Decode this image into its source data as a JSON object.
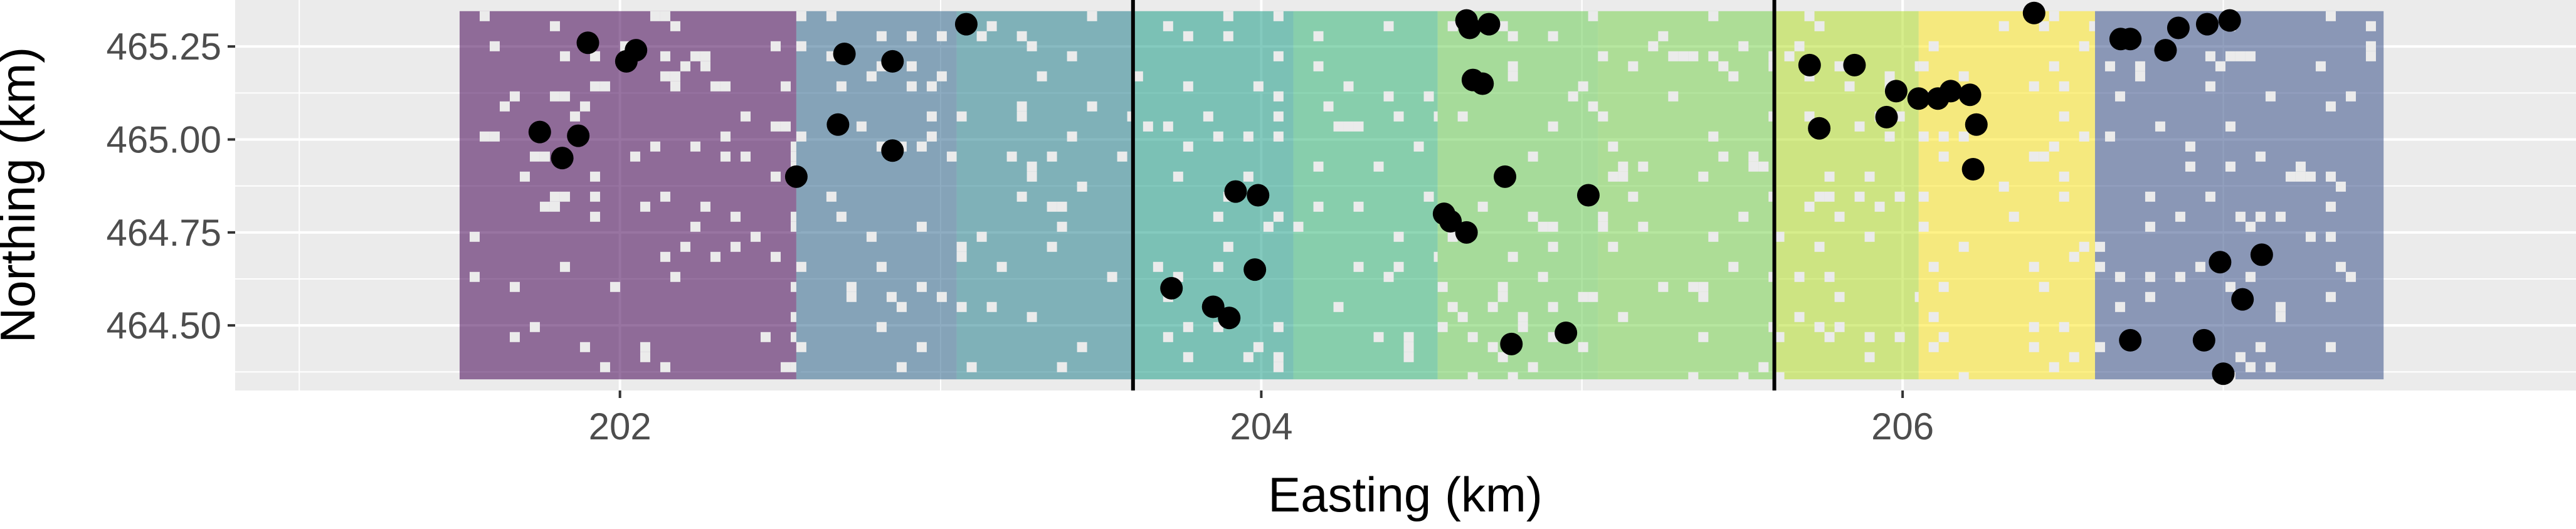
{
  "chart_data": {
    "type": "scatter",
    "title": "",
    "xlabel": "Easting (km)",
    "ylabel": "Northing (km)",
    "xlim": [
      200.8,
      208.1
    ],
    "ylim": [
      464.325,
      465.375
    ],
    "x_ticks": [
      202,
      204,
      206
    ],
    "x_tick_labels": [
      "202",
      "204",
      "206"
    ],
    "y_ticks": [
      464.5,
      464.75,
      465.0,
      465.25
    ],
    "y_tick_labels": [
      "464.50",
      "464.75",
      "465.00",
      "465.25"
    ],
    "grid": true,
    "legend": "none",
    "background": "#ebebeb",
    "vertical_lines_x": [
      203.6,
      205.6
    ],
    "vertical_line_color": "#000000",
    "point_color": "#000000",
    "raster": {
      "x_range": [
        201.5,
        207.5
      ],
      "y_range": [
        464.355,
        465.345
      ],
      "opacity": 0.55,
      "bands": [
        {
          "x0": 201.5,
          "x1": 202.55,
          "color": "#440154"
        },
        {
          "x0": 202.55,
          "x1": 203.05,
          "color": "#31688e"
        },
        {
          "x0": 203.05,
          "x1": 203.6,
          "color": "#26828e"
        },
        {
          "x0": 203.6,
          "x1": 204.1,
          "color": "#1f9e89"
        },
        {
          "x0": 204.1,
          "x1": 204.55,
          "color": "#35b779"
        },
        {
          "x0": 204.55,
          "x1": 205.05,
          "color": "#6ece58"
        },
        {
          "x0": 205.05,
          "x1": 205.6,
          "color": "#7ad151"
        },
        {
          "x0": 205.6,
          "x1": 206.05,
          "color": "#b5de2b"
        },
        {
          "x0": 206.05,
          "x1": 206.6,
          "color": "#fde725"
        },
        {
          "x0": 206.6,
          "x1": 207.5,
          "color": "#3b528b"
        }
      ]
    },
    "points": [
      {
        "x": 201.75,
        "y": 465.02
      },
      {
        "x": 201.82,
        "y": 464.95
      },
      {
        "x": 201.87,
        "y": 465.01
      },
      {
        "x": 201.9,
        "y": 465.26
      },
      {
        "x": 202.02,
        "y": 465.21
      },
      {
        "x": 202.05,
        "y": 465.24
      },
      {
        "x": 202.55,
        "y": 464.9
      },
      {
        "x": 202.68,
        "y": 465.04
      },
      {
        "x": 202.7,
        "y": 465.23
      },
      {
        "x": 202.85,
        "y": 465.21
      },
      {
        "x": 202.85,
        "y": 464.97
      },
      {
        "x": 203.08,
        "y": 465.31
      },
      {
        "x": 203.72,
        "y": 464.6
      },
      {
        "x": 203.85,
        "y": 464.55
      },
      {
        "x": 203.9,
        "y": 464.52
      },
      {
        "x": 203.92,
        "y": 464.86
      },
      {
        "x": 203.98,
        "y": 464.65
      },
      {
        "x": 203.99,
        "y": 464.85
      },
      {
        "x": 204.57,
        "y": 464.8
      },
      {
        "x": 204.59,
        "y": 464.78
      },
      {
        "x": 204.64,
        "y": 464.75
      },
      {
        "x": 204.64,
        "y": 465.32
      },
      {
        "x": 204.65,
        "y": 465.3
      },
      {
        "x": 204.66,
        "y": 465.16
      },
      {
        "x": 204.69,
        "y": 465.15
      },
      {
        "x": 204.71,
        "y": 465.31
      },
      {
        "x": 204.76,
        "y": 464.9
      },
      {
        "x": 204.78,
        "y": 464.45
      },
      {
        "x": 204.95,
        "y": 464.48
      },
      {
        "x": 205.02,
        "y": 464.85
      },
      {
        "x": 205.71,
        "y": 465.2
      },
      {
        "x": 205.74,
        "y": 465.03
      },
      {
        "x": 205.85,
        "y": 465.2
      },
      {
        "x": 205.95,
        "y": 465.06
      },
      {
        "x": 205.98,
        "y": 465.13
      },
      {
        "x": 206.05,
        "y": 465.11
      },
      {
        "x": 206.11,
        "y": 465.11
      },
      {
        "x": 206.15,
        "y": 465.13
      },
      {
        "x": 206.21,
        "y": 465.12
      },
      {
        "x": 206.23,
        "y": 465.04
      },
      {
        "x": 206.22,
        "y": 464.92
      },
      {
        "x": 206.41,
        "y": 465.34
      },
      {
        "x": 206.68,
        "y": 465.27
      },
      {
        "x": 206.71,
        "y": 465.27
      },
      {
        "x": 206.71,
        "y": 464.46
      },
      {
        "x": 206.82,
        "y": 465.24
      },
      {
        "x": 206.86,
        "y": 465.3
      },
      {
        "x": 206.95,
        "y": 465.31
      },
      {
        "x": 207.02,
        "y": 465.32
      },
      {
        "x": 206.94,
        "y": 464.46
      },
      {
        "x": 206.99,
        "y": 464.67
      },
      {
        "x": 207.0,
        "y": 464.37
      },
      {
        "x": 207.06,
        "y": 464.57
      },
      {
        "x": 207.12,
        "y": 464.69
      }
    ]
  }
}
